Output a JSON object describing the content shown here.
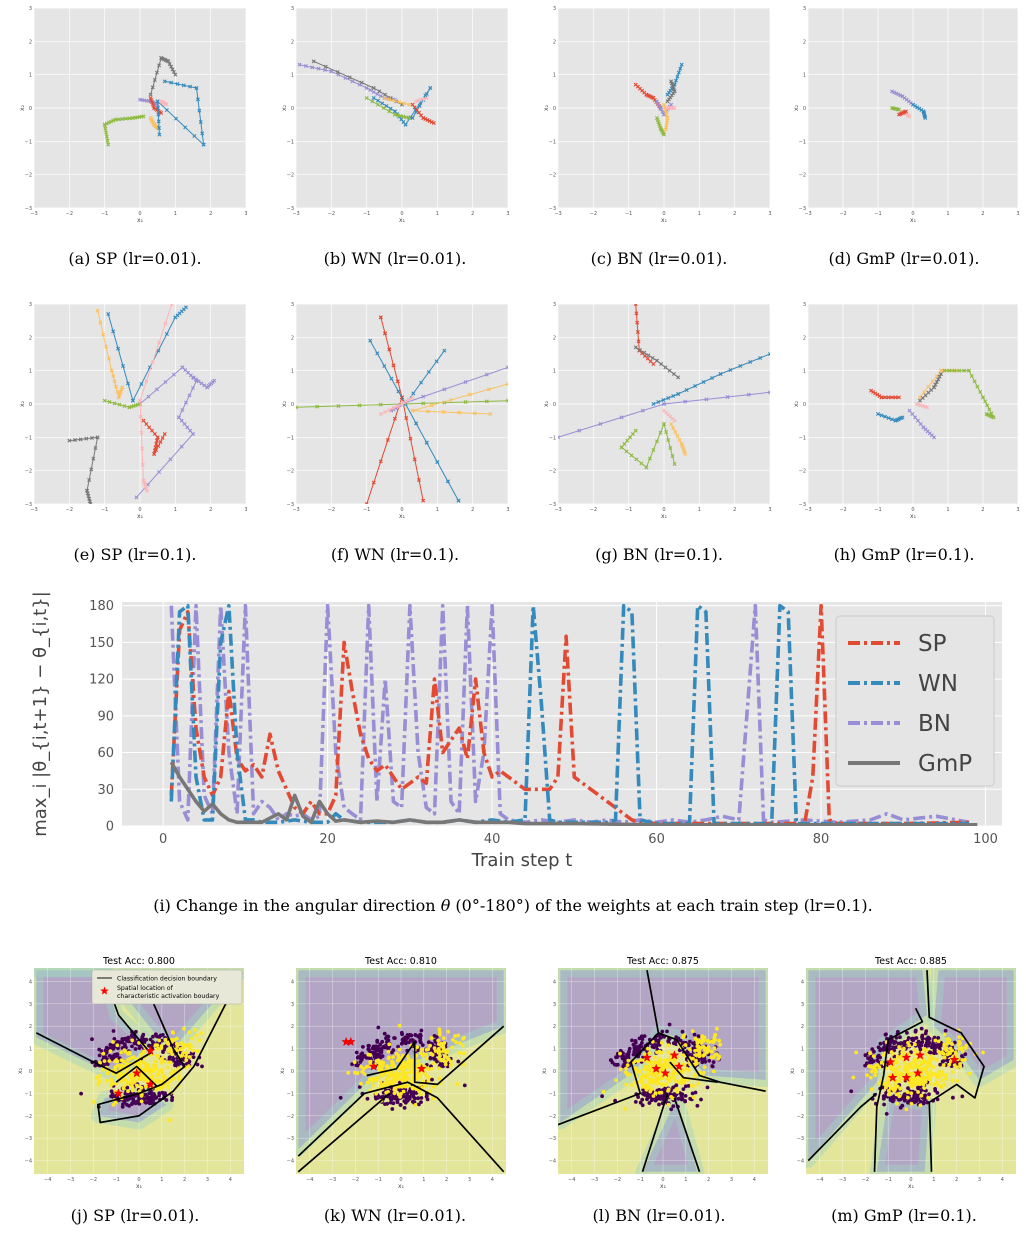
{
  "colors": {
    "SP": "#e24a33",
    "WN": "#348abd",
    "BN": "#988ed5",
    "GmP": "#777777",
    "green": "#8eba42",
    "orange": "#fbc15e",
    "pink": "#ffb5b8",
    "panel_bg": "#e5e5e5",
    "class0": "#440154",
    "class1": "#fde725",
    "region_purple": "#b3a6c4",
    "region_yellow": "#e3e59a",
    "region_teal": "#9fd2c4"
  },
  "traj_axis": {
    "xlabel": "x₁",
    "ylabel": "x₂",
    "ticks": [
      "−3",
      "−2",
      "−1",
      "0",
      "1",
      "2",
      "3"
    ]
  },
  "captions": {
    "a": "(a)  SP (lr=0.01).",
    "b": "(b)  WN (lr=0.01).",
    "c": "(c)  BN (lr=0.01).",
    "d": "(d)  GmP (lr=0.01).",
    "e": "(e)  SP (lr=0.1).",
    "f": "(f)  WN (lr=0.1).",
    "g": "(g)  BN (lr=0.1).",
    "h": "(h)  GmP (lr=0.1).",
    "i_prefix": "(i)  Change in the angular direction ",
    "i_theta": "θ",
    "i_suffix": " (0°-180°) of the weights at each train step (lr=0.1).",
    "j": "(j)  SP (lr=0.01).",
    "k": "(k)  WN (lr=0.01).",
    "l": "(l)  BN (lr=0.01).",
    "m": "(m)  GmP (lr=0.1)."
  },
  "boundary": {
    "titles": [
      "Test Acc: 0.800",
      "Test Acc: 0.810",
      "Test Acc: 0.875",
      "Test Acc: 0.885"
    ],
    "legend": [
      "Classification decision boundary",
      "Spatial location of characteristic activation boudary"
    ],
    "xlabel": "x₁",
    "ylabel": "x₂",
    "ticks": [
      "−4",
      "−3",
      "−2",
      "−1",
      "0",
      "1",
      "2",
      "3",
      "4"
    ]
  },
  "chart_data": [
    {
      "type": "line",
      "title": "",
      "xlabel": "Train step t",
      "ylabel": "max_i |θ_{i,t+1} − θ_{i,t}|",
      "xlim": [
        -5,
        102
      ],
      "ylim": [
        0,
        183
      ],
      "xticks": [
        0,
        20,
        40,
        60,
        80,
        100
      ],
      "yticks": [
        0,
        30,
        60,
        90,
        120,
        150,
        180
      ],
      "legend_position": "top-right",
      "grid": true,
      "series": [
        {
          "name": "SP",
          "points": [
            [
              1,
              25
            ],
            [
              2,
              160
            ],
            [
              3,
              175
            ],
            [
              4,
              80
            ],
            [
              5,
              40
            ],
            [
              6,
              25
            ],
            [
              7,
              40
            ],
            [
              8,
              110
            ],
            [
              9,
              55
            ],
            [
              10,
              45
            ],
            [
              11,
              50
            ],
            [
              12,
              40
            ],
            [
              13,
              75
            ],
            [
              14,
              45
            ],
            [
              15,
              30
            ],
            [
              16,
              15
            ],
            [
              17,
              10
            ],
            [
              18,
              20
            ],
            [
              19,
              10
            ],
            [
              20,
              10
            ],
            [
              21,
              25
            ],
            [
              22,
              150
            ],
            [
              23,
              110
            ],
            [
              24,
              75
            ],
            [
              25,
              55
            ],
            [
              26,
              45
            ],
            [
              27,
              50
            ],
            [
              28,
              40
            ],
            [
              29,
              30
            ],
            [
              30,
              35
            ],
            [
              31,
              40
            ],
            [
              32,
              35
            ],
            [
              33,
              120
            ],
            [
              34,
              60
            ],
            [
              35,
              70
            ],
            [
              36,
              80
            ],
            [
              37,
              55
            ],
            [
              38,
              120
            ],
            [
              39,
              60
            ],
            [
              40,
              40
            ],
            [
              41,
              45
            ],
            [
              42,
              40
            ],
            [
              43,
              35
            ],
            [
              44,
              30
            ],
            [
              45,
              30
            ],
            [
              46,
              30
            ],
            [
              47,
              30
            ],
            [
              48,
              40
            ],
            [
              49,
              155
            ],
            [
              50,
              40
            ],
            [
              51,
              35
            ],
            [
              52,
              30
            ],
            [
              53,
              25
            ],
            [
              54,
              20
            ],
            [
              55,
              15
            ],
            [
              56,
              10
            ],
            [
              57,
              5
            ],
            [
              58,
              3
            ],
            [
              60,
              2
            ],
            [
              70,
              2
            ],
            [
              78,
              2
            ],
            [
              79,
              40
            ],
            [
              80,
              180
            ],
            [
              81,
              5
            ],
            [
              82,
              2
            ],
            [
              90,
              2
            ],
            [
              98,
              3
            ]
          ]
        },
        {
          "name": "WN",
          "points": [
            [
              1,
              20
            ],
            [
              2,
              175
            ],
            [
              3,
              180
            ],
            [
              4,
              40
            ],
            [
              5,
              5
            ],
            [
              6,
              5
            ],
            [
              7,
              150
            ],
            [
              8,
              180
            ],
            [
              9,
              60
            ],
            [
              10,
              5
            ],
            [
              11,
              5
            ],
            [
              12,
              3
            ],
            [
              14,
              3
            ],
            [
              16,
              5
            ],
            [
              18,
              3
            ],
            [
              20,
              3
            ],
            [
              21,
              10
            ],
            [
              22,
              5
            ],
            [
              24,
              3
            ],
            [
              26,
              3
            ],
            [
              28,
              3
            ],
            [
              30,
              5
            ],
            [
              32,
              3
            ],
            [
              34,
              3
            ],
            [
              36,
              5
            ],
            [
              38,
              3
            ],
            [
              40,
              5
            ],
            [
              42,
              3
            ],
            [
              44,
              5
            ],
            [
              45,
              180
            ],
            [
              46,
              100
            ],
            [
              47,
              5
            ],
            [
              48,
              3
            ],
            [
              50,
              3
            ],
            [
              52,
              3
            ],
            [
              54,
              3
            ],
            [
              55,
              5
            ],
            [
              56,
              180
            ],
            [
              57,
              175
            ],
            [
              58,
              5
            ],
            [
              60,
              2
            ],
            [
              62,
              2
            ],
            [
              64,
              2
            ],
            [
              65,
              180
            ],
            [
              66,
              175
            ],
            [
              67,
              2
            ],
            [
              70,
              2
            ],
            [
              74,
              2
            ],
            [
              75,
              180
            ],
            [
              76,
              175
            ],
            [
              77,
              2
            ],
            [
              80,
              2
            ],
            [
              90,
              2
            ],
            [
              98,
              2
            ]
          ]
        },
        {
          "name": "BN",
          "points": [
            [
              1,
              180
            ],
            [
              2,
              20
            ],
            [
              3,
              5
            ],
            [
              4,
              180
            ],
            [
              5,
              25
            ],
            [
              6,
              10
            ],
            [
              7,
              180
            ],
            [
              8,
              60
            ],
            [
              9,
              10
            ],
            [
              10,
              180
            ],
            [
              11,
              10
            ],
            [
              12,
              20
            ],
            [
              13,
              15
            ],
            [
              14,
              5
            ],
            [
              15,
              10
            ],
            [
              16,
              8
            ],
            [
              17,
              10
            ],
            [
              18,
              5
            ],
            [
              19,
              8
            ],
            [
              20,
              180
            ],
            [
              21,
              60
            ],
            [
              22,
              15
            ],
            [
              23,
              10
            ],
            [
              24,
              5
            ],
            [
              25,
              180
            ],
            [
              26,
              20
            ],
            [
              27,
              120
            ],
            [
              28,
              20
            ],
            [
              29,
              15
            ],
            [
              30,
              180
            ],
            [
              31,
              60
            ],
            [
              32,
              15
            ],
            [
              33,
              10
            ],
            [
              34,
              180
            ],
            [
              35,
              20
            ],
            [
              36,
              10
            ],
            [
              37,
              180
            ],
            [
              38,
              20
            ],
            [
              39,
              60
            ],
            [
              40,
              180
            ],
            [
              41,
              10
            ],
            [
              42,
              5
            ],
            [
              44,
              3
            ],
            [
              46,
              5
            ],
            [
              48,
              3
            ],
            [
              50,
              5
            ],
            [
              52,
              3
            ],
            [
              54,
              5
            ],
            [
              56,
              3
            ],
            [
              58,
              5
            ],
            [
              60,
              3
            ],
            [
              62,
              5
            ],
            [
              64,
              3
            ],
            [
              66,
              5
            ],
            [
              68,
              8
            ],
            [
              70,
              5
            ],
            [
              72,
              180
            ],
            [
              73,
              5
            ],
            [
              74,
              3
            ],
            [
              78,
              5
            ],
            [
              82,
              3
            ],
            [
              86,
              5
            ],
            [
              88,
              10
            ],
            [
              90,
              5
            ],
            [
              94,
              8
            ],
            [
              98,
              3
            ]
          ]
        },
        {
          "name": "GmP",
          "points": [
            [
              1,
              52
            ],
            [
              2,
              40
            ],
            [
              3,
              30
            ],
            [
              4,
              20
            ],
            [
              5,
              12
            ],
            [
              6,
              18
            ],
            [
              7,
              10
            ],
            [
              8,
              5
            ],
            [
              9,
              3
            ],
            [
              10,
              3
            ],
            [
              12,
              3
            ],
            [
              14,
              10
            ],
            [
              15,
              5
            ],
            [
              16,
              25
            ],
            [
              17,
              8
            ],
            [
              18,
              3
            ],
            [
              19,
              20
            ],
            [
              20,
              10
            ],
            [
              21,
              4
            ],
            [
              22,
              5
            ],
            [
              24,
              3
            ],
            [
              26,
              4
            ],
            [
              28,
              3
            ],
            [
              30,
              5
            ],
            [
              32,
              3
            ],
            [
              34,
              3
            ],
            [
              36,
              5
            ],
            [
              38,
              3
            ],
            [
              40,
              3
            ],
            [
              42,
              3
            ],
            [
              44,
              2
            ],
            [
              50,
              2
            ],
            [
              60,
              1
            ],
            [
              70,
              1
            ],
            [
              80,
              1
            ],
            [
              90,
              1
            ],
            [
              99,
              1
            ]
          ]
        }
      ]
    }
  ]
}
